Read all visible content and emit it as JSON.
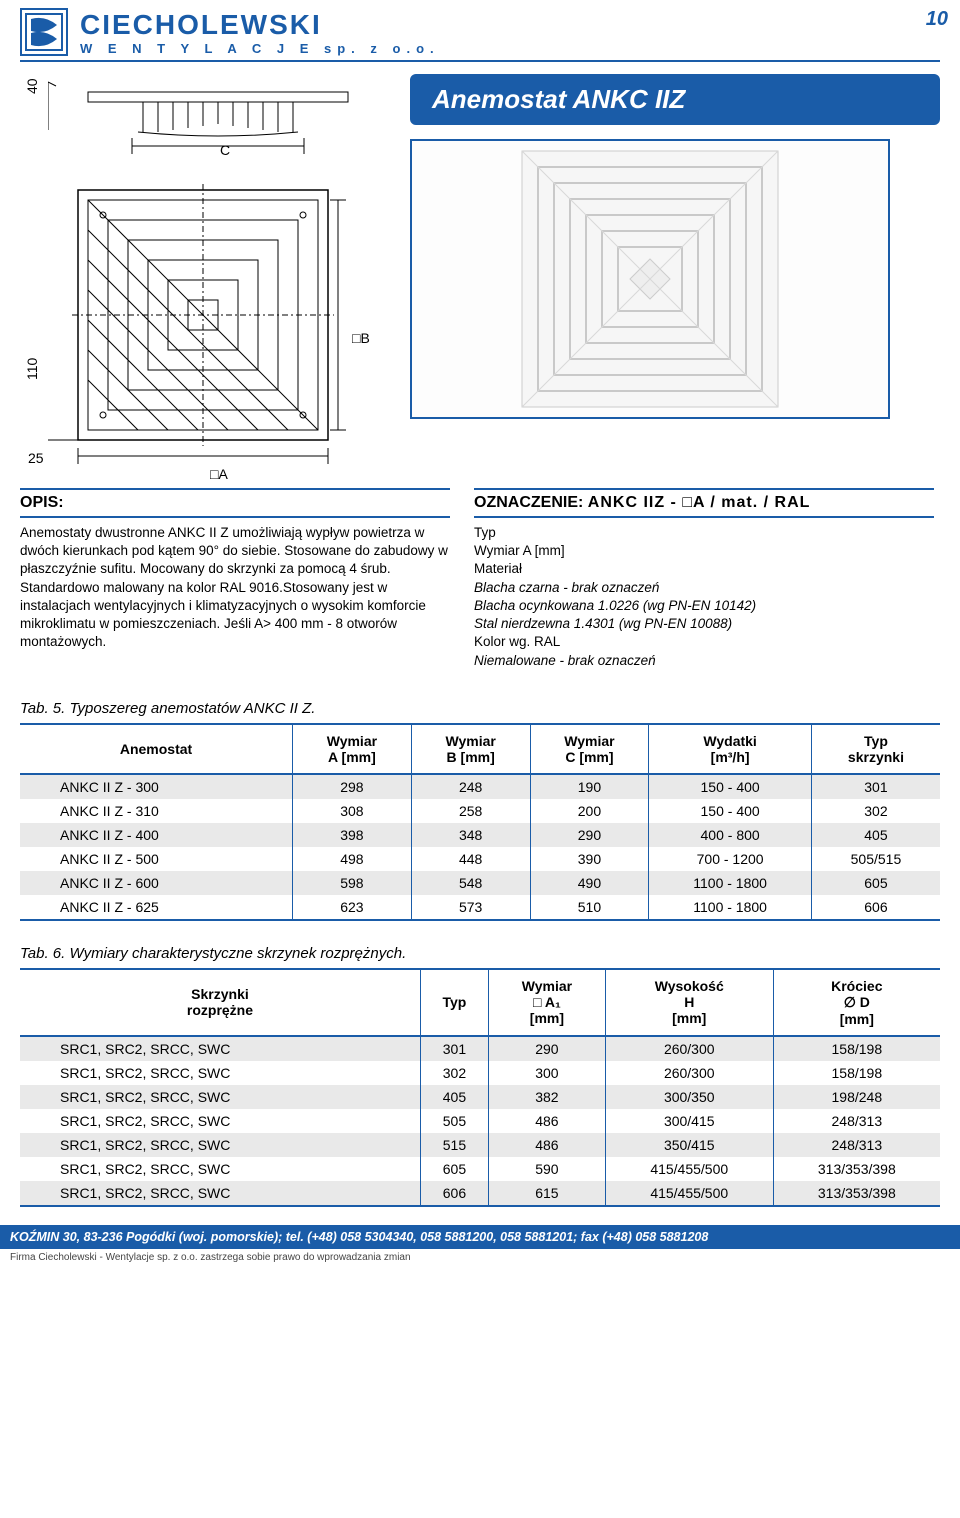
{
  "page_number": "10",
  "company": {
    "name": "CIECHOLEWSKI",
    "subtitle": "W E N T Y L A C J E   sp. z o.o."
  },
  "product_title": "Anemostat ANKC IIZ",
  "drawing": {
    "dim_40": "40",
    "dim_110": "110",
    "dim_25": "25",
    "dim_C": "C",
    "dim_B": "□B",
    "dim_A": "□A"
  },
  "opis": {
    "heading": "OPIS:",
    "body": "Anemostaty dwustronne ANKC II Z umożliwiają wypływ powietrza w dwóch kierunkach pod kątem 90° do siebie. Stosowane do zabudowy w płaszczyźnie sufitu. Mocowany do skrzynki za pomocą 4 śrub. Standardowo malowany na kolor RAL 9016.Stosowany jest w instalacjach wentylacyjnych i klimatyzacyjnych o wysokim komforcie mikroklimatu w pomieszczeniach. Jeśli A> 400 mm - 8 otworów montażowych."
  },
  "oznaczenie": {
    "heading_label": "OZNACZENIE:",
    "heading_code": "ANKC IIZ - □A  / mat. / RAL",
    "lines": [
      {
        "t": "Typ",
        "it": false
      },
      {
        "t": "Wymiar A [mm]",
        "it": false
      },
      {
        "t": "Materiał",
        "it": false
      },
      {
        "t": "Blacha czarna - brak oznaczeń",
        "it": true
      },
      {
        "t": "Blacha ocynkowana 1.0226 (wg PN-EN 10142)",
        "it": true
      },
      {
        "t": "Stal nierdzewna 1.4301 (wg PN-EN 10088)",
        "it": true
      },
      {
        "t": "Kolor wg. RAL",
        "it": false
      },
      {
        "t": "Niemalowane - brak oznaczeń",
        "it": true
      }
    ]
  },
  "table5": {
    "caption": "Tab. 5. Typoszereg anemostatów ANKC II Z.",
    "headers": [
      "Anemostat",
      "Wymiar\nA [mm]",
      "Wymiar\nB [mm]",
      "Wymiar\nC [mm]",
      "Wydatki\n[m³/h]",
      "Typ\nskrzynki"
    ],
    "rows": [
      [
        "ANKC II Z - 300",
        "298",
        "248",
        "190",
        "150 - 400",
        "301"
      ],
      [
        "ANKC II Z - 310",
        "308",
        "258",
        "200",
        "150 - 400",
        "302"
      ],
      [
        "ANKC II Z - 400",
        "398",
        "348",
        "290",
        "400 - 800",
        "405"
      ],
      [
        "ANKC II Z - 500",
        "498",
        "448",
        "390",
        "700 - 1200",
        "505/515"
      ],
      [
        "ANKC II Z - 600",
        "598",
        "548",
        "490",
        "1100 - 1800",
        "605"
      ],
      [
        "ANKC II Z - 625",
        "623",
        "573",
        "510",
        "1100 - 1800",
        "606"
      ]
    ]
  },
  "table6": {
    "caption": "Tab. 6. Wymiary charakterystyczne skrzynek rozprężnych.",
    "headers": [
      "Skrzynki\nrozprężne",
      "Typ",
      "Wymiar\n□ A₁\n[mm]",
      "Wysokość\nH\n[mm]",
      "Króciec\n∅ D\n[mm]"
    ],
    "rows": [
      [
        "SRC1, SRC2, SRCC, SWC",
        "301",
        "290",
        "260/300",
        "158/198"
      ],
      [
        "SRC1, SRC2, SRCC, SWC",
        "302",
        "300",
        "260/300",
        "158/198"
      ],
      [
        "SRC1, SRC2, SRCC, SWC",
        "405",
        "382",
        "300/350",
        "198/248"
      ],
      [
        "SRC1, SRC2, SRCC, SWC",
        "505",
        "486",
        "300/415",
        "248/313"
      ],
      [
        "SRC1, SRC2, SRCC, SWC",
        "515",
        "486",
        "350/415",
        "248/313"
      ],
      [
        "SRC1, SRC2, SRCC, SWC",
        "605",
        "590",
        "415/455/500",
        "313/353/398"
      ],
      [
        "SRC1, SRC2, SRCC, SWC",
        "606",
        "615",
        "415/455/500",
        "313/353/398"
      ]
    ]
  },
  "footer": {
    "contact": "KOŹMIN 30, 83-236 Pogódki (woj. pomorskie); tel. (+48) 058 5304340, 058 5881200, 058 5881201; fax (+48) 058 5881208",
    "note": "Firma Ciecholewski - Wentylacje sp. z o.o. zastrzega sobie prawo do wprowadzania zmian"
  },
  "colors": {
    "brand": "#1a5ca8",
    "row_alt": "#e9e9e9",
    "bg": "#ffffff"
  }
}
